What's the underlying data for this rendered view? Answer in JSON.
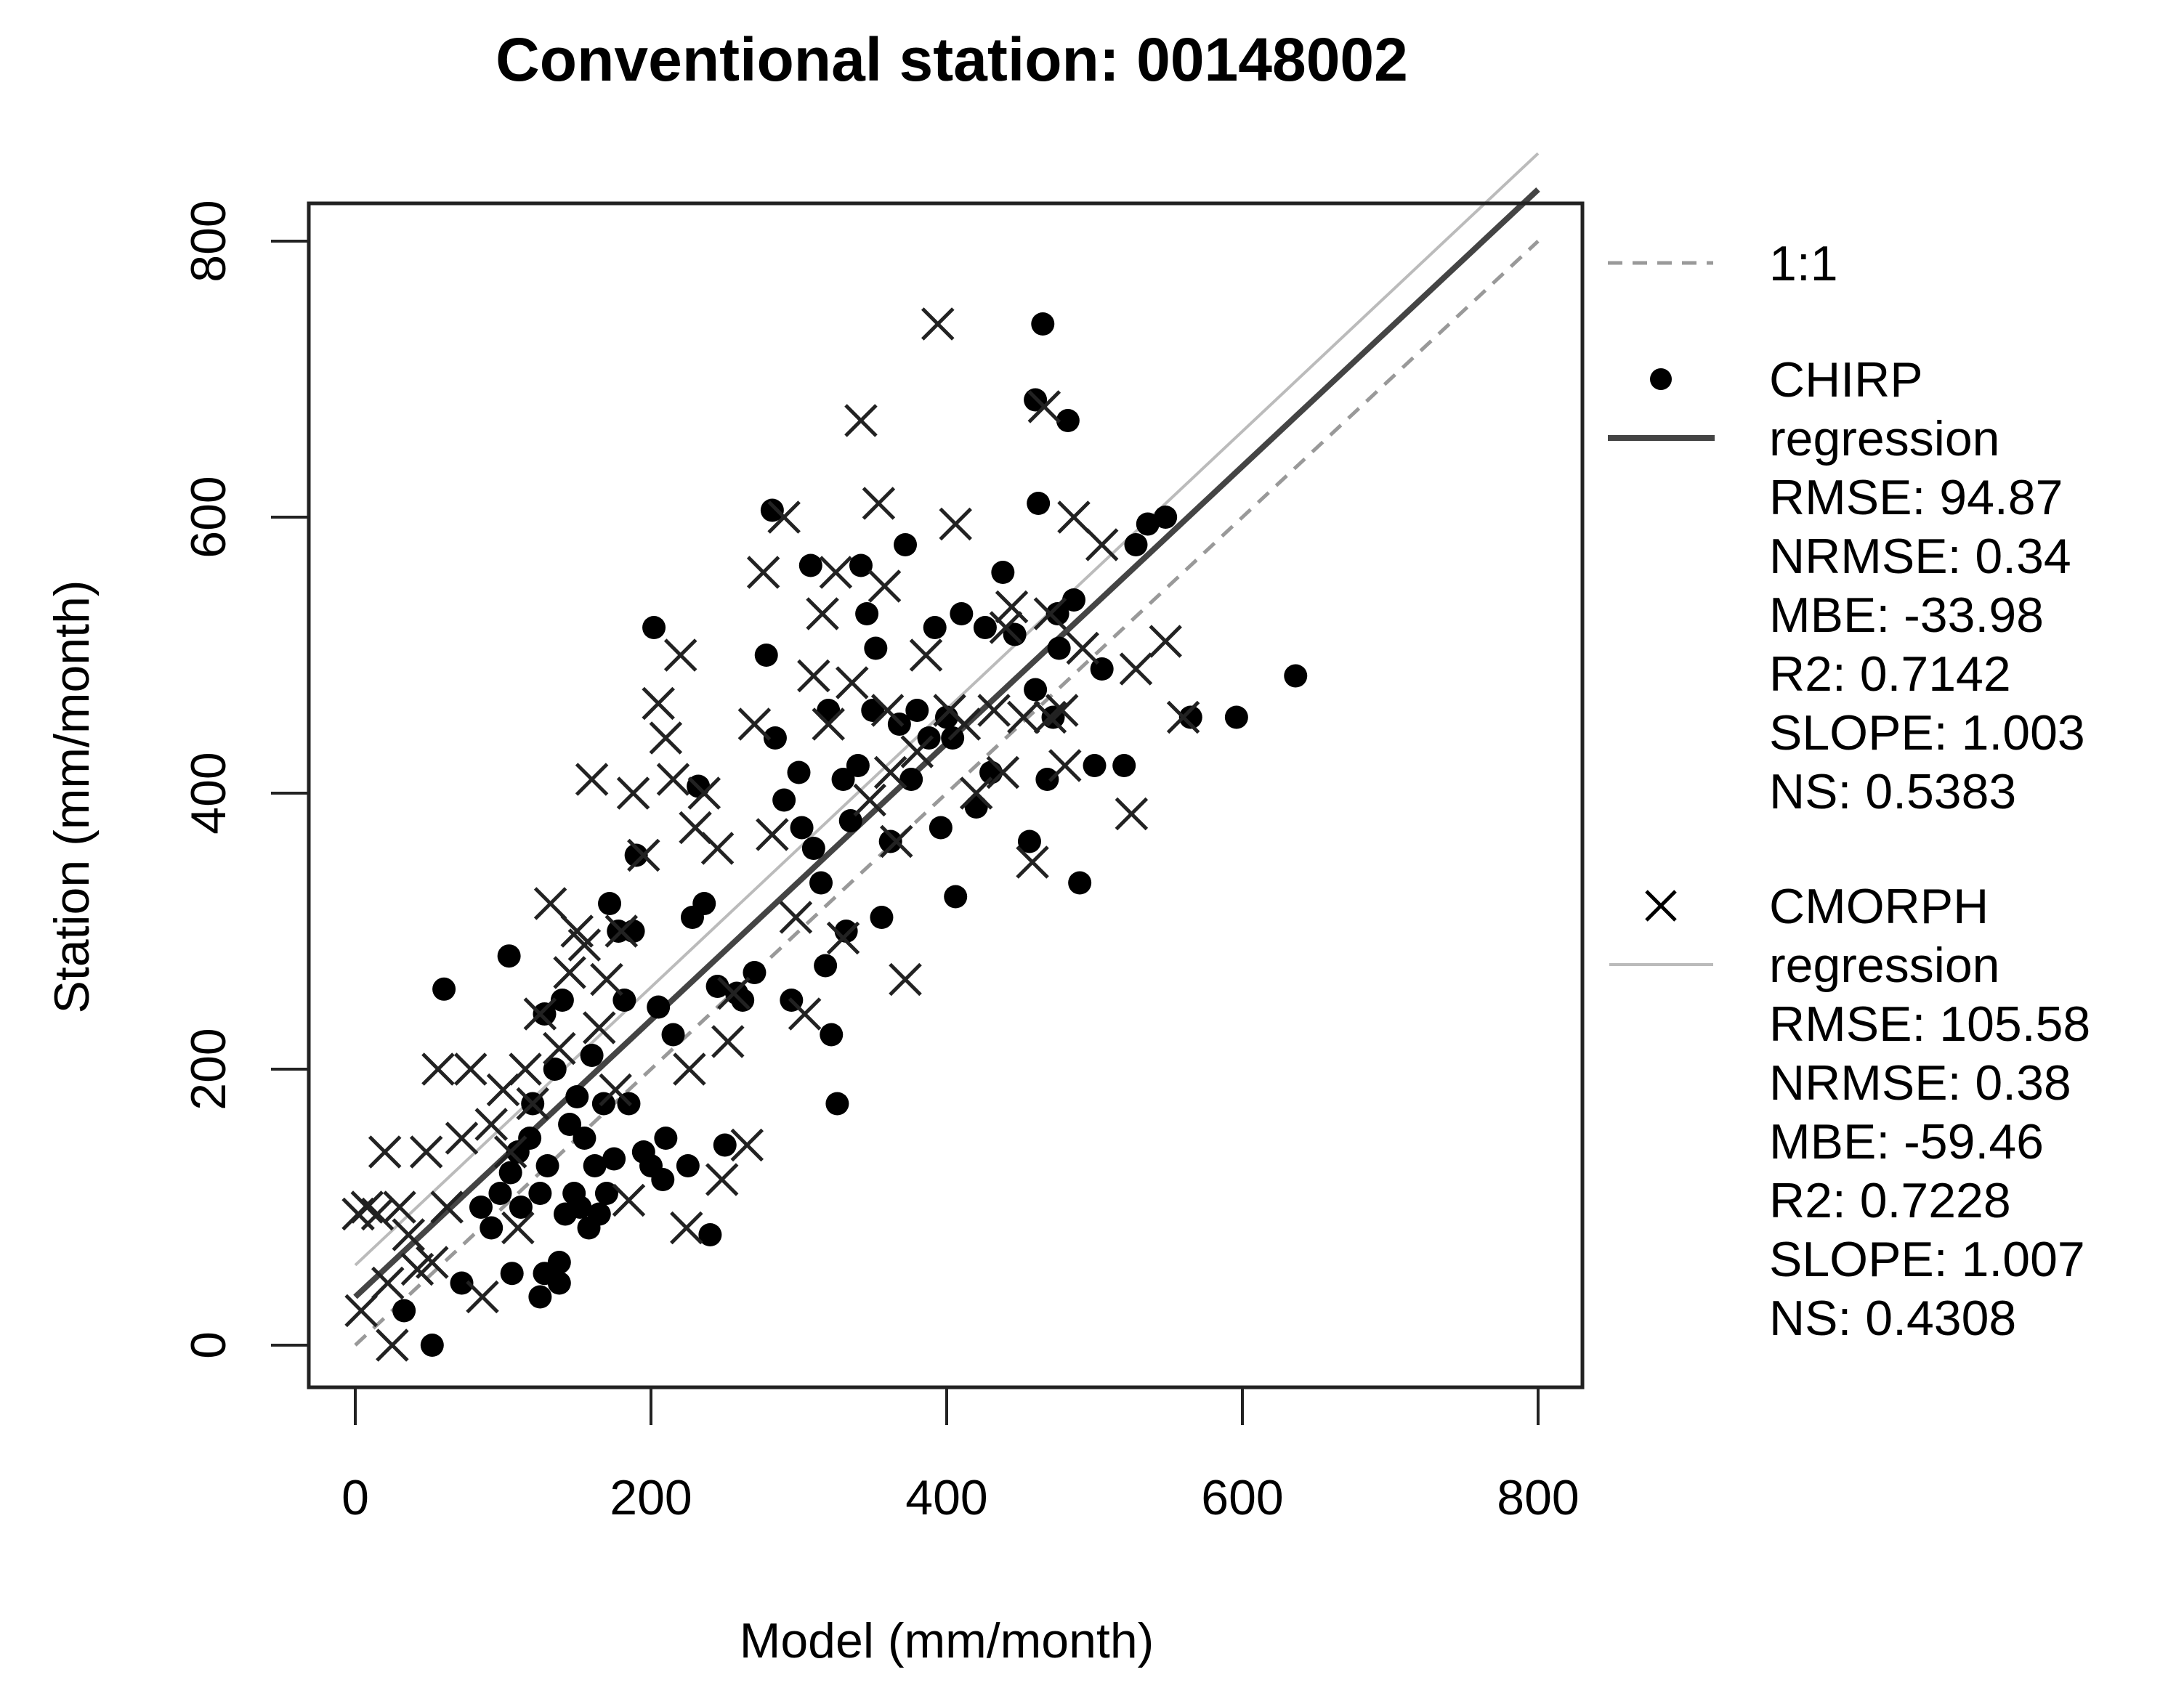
{
  "title": "Conventional station: 00148002",
  "chart_data": {
    "type": "scatter",
    "title": "Conventional station: 00148002",
    "xlabel": "Model (mm/month)",
    "ylabel": "Station (mm/month)",
    "xlim": [
      0,
      800
    ],
    "ylim": [
      0,
      800
    ],
    "xticks": [
      0,
      200,
      400,
      600,
      800
    ],
    "yticks": [
      0,
      200,
      400,
      600,
      800
    ],
    "grid": false,
    "legend_position": "right-outside",
    "reference_lines": [
      {
        "name": "1:1",
        "slope": 1.0,
        "intercept": 0,
        "style": "dashed",
        "color": "#999999"
      },
      {
        "name": "CHIRP regression",
        "slope": 1.003,
        "intercept": 35,
        "style": "solid",
        "color": "#444444",
        "width": "thick"
      },
      {
        "name": "CMORPH regression",
        "slope": 1.007,
        "intercept": 58,
        "style": "solid",
        "color": "#bbbbbb",
        "width": "thin"
      }
    ],
    "series": [
      {
        "name": "CHIRP",
        "marker": "filled-circle",
        "stats": {
          "RMSE": 94.87,
          "NRMSE": 0.34,
          "MBE": -33.98,
          "R2": 0.7142,
          "SLOPE": 1.003,
          "NS": 0.5383
        },
        "points": [
          [
            52,
            0
          ],
          [
            33,
            25
          ],
          [
            60,
            258
          ],
          [
            104,
            282
          ],
          [
            72,
            45
          ],
          [
            106,
            52
          ],
          [
            125,
            35
          ],
          [
            128,
            52
          ],
          [
            138,
            45
          ],
          [
            138,
            60
          ],
          [
            85,
            100
          ],
          [
            92,
            85
          ],
          [
            98,
            110
          ],
          [
            105,
            125
          ],
          [
            110,
            140
          ],
          [
            112,
            100
          ],
          [
            118,
            150
          ],
          [
            120,
            175
          ],
          [
            125,
            110
          ],
          [
            128,
            240
          ],
          [
            130,
            130
          ],
          [
            135,
            200
          ],
          [
            140,
            250
          ],
          [
            142,
            95
          ],
          [
            145,
            160
          ],
          [
            148,
            110
          ],
          [
            150,
            180
          ],
          [
            152,
            100
          ],
          [
            155,
            150
          ],
          [
            158,
            85
          ],
          [
            160,
            210
          ],
          [
            162,
            130
          ],
          [
            165,
            95
          ],
          [
            168,
            175
          ],
          [
            170,
            110
          ],
          [
            172,
            320
          ],
          [
            175,
            135
          ],
          [
            178,
            300
          ],
          [
            182,
            250
          ],
          [
            185,
            175
          ],
          [
            188,
            300
          ],
          [
            190,
            355
          ],
          [
            195,
            140
          ],
          [
            200,
            130
          ],
          [
            202,
            520
          ],
          [
            205,
            245
          ],
          [
            208,
            120
          ],
          [
            210,
            150
          ],
          [
            215,
            225
          ],
          [
            225,
            130
          ],
          [
            228,
            310
          ],
          [
            232,
            405
          ],
          [
            236,
            320
          ],
          [
            240,
            80
          ],
          [
            245,
            260
          ],
          [
            250,
            145
          ],
          [
            258,
            255
          ],
          [
            262,
            250
          ],
          [
            270,
            270
          ],
          [
            278,
            500
          ],
          [
            282,
            605
          ],
          [
            284,
            440
          ],
          [
            290,
            395
          ],
          [
            295,
            250
          ],
          [
            300,
            415
          ],
          [
            302,
            375
          ],
          [
            308,
            565
          ],
          [
            310,
            360
          ],
          [
            315,
            335
          ],
          [
            318,
            275
          ],
          [
            320,
            460
          ],
          [
            322,
            225
          ],
          [
            326,
            175
          ],
          [
            330,
            410
          ],
          [
            332,
            300
          ],
          [
            335,
            380
          ],
          [
            340,
            420
          ],
          [
            342,
            565
          ],
          [
            346,
            530
          ],
          [
            350,
            460
          ],
          [
            352,
            505
          ],
          [
            356,
            310
          ],
          [
            362,
            365
          ],
          [
            368,
            450
          ],
          [
            372,
            580
          ],
          [
            376,
            410
          ],
          [
            380,
            460
          ],
          [
            388,
            440
          ],
          [
            392,
            520
          ],
          [
            396,
            375
          ],
          [
            400,
            455
          ],
          [
            404,
            440
          ],
          [
            406,
            325
          ],
          [
            410,
            530
          ],
          [
            420,
            390
          ],
          [
            426,
            520
          ],
          [
            430,
            415
          ],
          [
            438,
            560
          ],
          [
            446,
            515
          ],
          [
            456,
            365
          ],
          [
            460,
            475
          ],
          [
            462,
            610
          ],
          [
            465,
            740
          ],
          [
            468,
            410
          ],
          [
            472,
            455
          ],
          [
            476,
            505
          ],
          [
            482,
            670
          ],
          [
            486,
            540
          ],
          [
            490,
            335
          ],
          [
            500,
            420
          ],
          [
            505,
            490
          ],
          [
            520,
            420
          ],
          [
            528,
            580
          ],
          [
            536,
            595
          ],
          [
            548,
            600
          ],
          [
            565,
            455
          ],
          [
            596,
            455
          ],
          [
            636,
            485
          ],
          [
            460,
            685
          ],
          [
            475,
            530
          ]
        ]
      },
      {
        "name": "CMORPH",
        "marker": "x-cross",
        "stats": {
          "RMSE": 105.58,
          "NRMSE": 0.38,
          "MBE": -59.46,
          "R2": 0.7228,
          "SLOPE": 1.007,
          "NS": 0.4308
        },
        "points": [
          [
            2,
            95
          ],
          [
            4,
            25
          ],
          [
            8,
            100
          ],
          [
            15,
            95
          ],
          [
            20,
            140
          ],
          [
            22,
            45
          ],
          [
            25,
            0
          ],
          [
            30,
            100
          ],
          [
            36,
            80
          ],
          [
            42,
            55
          ],
          [
            48,
            140
          ],
          [
            52,
            60
          ],
          [
            56,
            200
          ],
          [
            62,
            100
          ],
          [
            72,
            150
          ],
          [
            78,
            200
          ],
          [
            86,
            35
          ],
          [
            92,
            160
          ],
          [
            100,
            185
          ],
          [
            105,
            140
          ],
          [
            110,
            85
          ],
          [
            115,
            200
          ],
          [
            120,
            175
          ],
          [
            125,
            240
          ],
          [
            132,
            320
          ],
          [
            138,
            215
          ],
          [
            145,
            270
          ],
          [
            150,
            300
          ],
          [
            155,
            290
          ],
          [
            160,
            410
          ],
          [
            165,
            230
          ],
          [
            170,
            265
          ],
          [
            176,
            185
          ],
          [
            180,
            300
          ],
          [
            185,
            105
          ],
          [
            188,
            400
          ],
          [
            195,
            355
          ],
          [
            205,
            465
          ],
          [
            210,
            440
          ],
          [
            215,
            410
          ],
          [
            220,
            500
          ],
          [
            224,
            85
          ],
          [
            226,
            200
          ],
          [
            230,
            375
          ],
          [
            236,
            400
          ],
          [
            245,
            360
          ],
          [
            248,
            120
          ],
          [
            252,
            220
          ],
          [
            256,
            255
          ],
          [
            265,
            145
          ],
          [
            270,
            450
          ],
          [
            276,
            560
          ],
          [
            282,
            370
          ],
          [
            290,
            600
          ],
          [
            298,
            310
          ],
          [
            304,
            240
          ],
          [
            310,
            485
          ],
          [
            316,
            530
          ],
          [
            320,
            450
          ],
          [
            325,
            560
          ],
          [
            330,
            295
          ],
          [
            336,
            480
          ],
          [
            342,
            670
          ],
          [
            348,
            395
          ],
          [
            354,
            610
          ],
          [
            358,
            550
          ],
          [
            362,
            415
          ],
          [
            366,
            365
          ],
          [
            372,
            265
          ],
          [
            380,
            430
          ],
          [
            386,
            500
          ],
          [
            394,
            740
          ],
          [
            402,
            460
          ],
          [
            406,
            595
          ],
          [
            412,
            450
          ],
          [
            420,
            400
          ],
          [
            432,
            460
          ],
          [
            438,
            415
          ],
          [
            444,
            535
          ],
          [
            452,
            455
          ],
          [
            458,
            350
          ],
          [
            466,
            680
          ],
          [
            470,
            530
          ],
          [
            478,
            460
          ],
          [
            486,
            600
          ],
          [
            492,
            505
          ],
          [
            505,
            580
          ],
          [
            525,
            385
          ],
          [
            528,
            490
          ],
          [
            548,
            510
          ],
          [
            560,
            455
          ],
          [
            440,
            520
          ],
          [
            480,
            420
          ],
          [
            360,
            460
          ],
          [
            470,
            455
          ]
        ]
      }
    ]
  },
  "axes": {
    "xlabel": "Model (mm/month)",
    "ylabel": "Station (mm/month)",
    "xticks": [
      "0",
      "200",
      "400",
      "600",
      "800"
    ],
    "yticks": [
      "0",
      "200",
      "400",
      "600",
      "800"
    ]
  },
  "legend": {
    "one_to_one": "1:1",
    "chirp": {
      "name": "CHIRP",
      "regression": "regression",
      "lines": [
        "RMSE: 94.87",
        "NRMSE: 0.34",
        "MBE: -33.98",
        "R2: 0.7142",
        "SLOPE: 1.003",
        "NS: 0.5383"
      ]
    },
    "cmorph": {
      "name": "CMORPH",
      "regression": "regression",
      "lines": [
        "RMSE: 105.58",
        "NRMSE: 0.38",
        "MBE: -59.46",
        "R2: 0.7228",
        "SLOPE: 1.007",
        "NS: 0.4308"
      ]
    }
  },
  "colors": {
    "frame": "#222222",
    "one_to_one": "#999999",
    "chirp_regression": "#444444",
    "cmorph_regression": "#bbbbbb",
    "markers": "#000000"
  }
}
